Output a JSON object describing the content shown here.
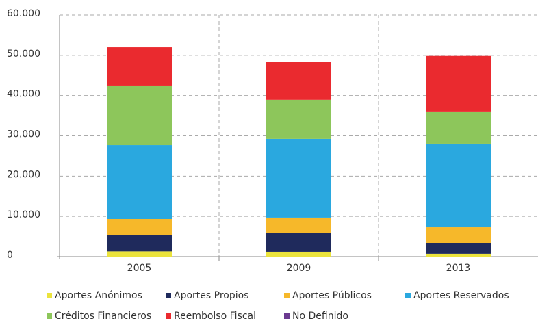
{
  "chart_data": {
    "type": "stacked_bar",
    "categories": [
      "2005",
      "2009",
      "2013"
    ],
    "series": [
      {
        "name": "Aportes Anónimos",
        "color": "#ebe33c",
        "values": [
          1300,
          1200,
          700
        ]
      },
      {
        "name": "Aportes Propios",
        "color": "#1f2a5c",
        "values": [
          4100,
          4600,
          2700
        ]
      },
      {
        "name": "Aportes Públicos",
        "color": "#f6b82a",
        "values": [
          3950,
          3900,
          3900
        ]
      },
      {
        "name": "Aportes Reservados",
        "color": "#2aa8df",
        "values": [
          18350,
          19550,
          20750
        ]
      },
      {
        "name": "Créditos Financieros",
        "color": "#8dc65b",
        "values": [
          14800,
          9700,
          8000
        ]
      },
      {
        "name": "Reembolso Fiscal",
        "color": "#ea2a2f",
        "values": [
          9500,
          9350,
          13800
        ]
      },
      {
        "name": "No Definido",
        "color": "#6b3a90",
        "values": [
          0,
          0,
          0
        ]
      }
    ],
    "ylim": [
      0,
      60000
    ],
    "yticks": [
      0,
      {
        "value": 10000,
        "label": "10.000"
      },
      {
        "value": 20000,
        "label": "20.000"
      },
      {
        "value": 30000,
        "label": "30.000"
      },
      {
        "value": 40000,
        "label": "40.000"
      },
      {
        "value": 50000,
        "label": "50.000"
      },
      {
        "value": 60000,
        "label": "60.000"
      }
    ],
    "grid": true
  }
}
